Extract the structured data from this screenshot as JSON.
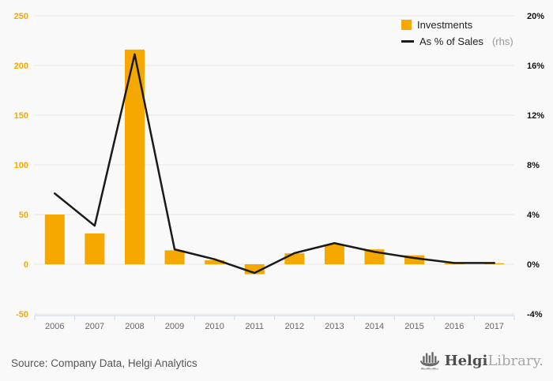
{
  "page": {
    "background": "#f9f9f9"
  },
  "chart_data": {
    "type": "combo",
    "title": "",
    "categories": [
      "2006",
      "2007",
      "2008",
      "2009",
      "2010",
      "2011",
      "2012",
      "2013",
      "2014",
      "2015",
      "2016",
      "2017"
    ],
    "series": [
      {
        "name": "Investments",
        "type": "bar",
        "axis": "left",
        "color": "#f5a800",
        "values": [
          50,
          31,
          216,
          14,
          4,
          -10,
          11,
          20,
          15,
          9,
          1,
          1
        ]
      },
      {
        "name": "As % of Sales",
        "note": "(rhs)",
        "type": "line",
        "axis": "right",
        "color": "#1a1a1a",
        "values": [
          5.7,
          3.1,
          16.9,
          1.2,
          0.4,
          -0.7,
          0.9,
          1.7,
          1.0,
          0.5,
          0.1,
          0.1
        ]
      }
    ],
    "left_axis": {
      "min": -50,
      "max": 250,
      "ticks": [
        -50,
        0,
        50,
        100,
        150,
        200,
        250
      ],
      "labels": [
        "-50",
        "0",
        "50",
        "100",
        "150",
        "200",
        "250"
      ],
      "color": "#f5a800"
    },
    "right_axis": {
      "min": -4,
      "max": 20,
      "ticks": [
        -4,
        0,
        4,
        8,
        12,
        16,
        20
      ],
      "labels": [
        "-4%",
        "0%",
        "4%",
        "8%",
        "12%",
        "16%",
        "20%"
      ],
      "color": "#111111"
    },
    "grid": true,
    "gridline_color": "#e6e6e6",
    "axis_line_color": "#ccd6eb",
    "x_label_color": "#666666",
    "legend": {
      "position": "top-right",
      "items": [
        {
          "label": "Investments",
          "note": "",
          "marker": "square",
          "color": "#f5a800"
        },
        {
          "label": "As % of Sales",
          "note": "(rhs)",
          "marker": "line",
          "color": "#1a1a1a"
        }
      ]
    }
  },
  "footer": {
    "source": "Source: Company Data, Helgi Analytics",
    "logo": {
      "name": "Helgi",
      "name2": "Library."
    }
  }
}
